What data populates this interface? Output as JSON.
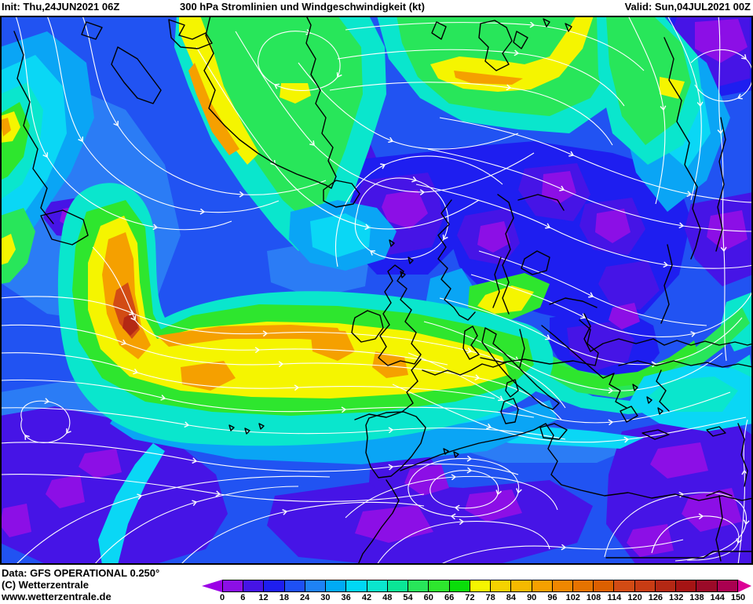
{
  "header": {
    "init_label": "Init: Thu,24JUN2021 06Z",
    "title": "300 hPa Stromlinien und Windgeschwindigkeit (kt)",
    "valid_label": "Valid: Sun,04JUL2021 00Z"
  },
  "footer": {
    "data_source": "Data: GFS OPERATIONAL 0.250°",
    "copyright": "(C) Wetterzentrale",
    "website": "www.wetterzentrale.de"
  },
  "colorbar": {
    "unit": "kt",
    "tick_labels": [
      "0",
      "6",
      "12",
      "18",
      "24",
      "30",
      "36",
      "42",
      "48",
      "54",
      "60",
      "66",
      "72",
      "78",
      "84",
      "90",
      "96",
      "102",
      "108",
      "114",
      "120",
      "126",
      "132",
      "138",
      "144",
      "150"
    ],
    "segment_colors": [
      "#8c0fe6",
      "#4614e6",
      "#1e1ef0",
      "#1e50f5",
      "#1e82f5",
      "#00aaf5",
      "#00d7f5",
      "#0ae6cd",
      "#0ae696",
      "#28e65a",
      "#2ee62e",
      "#0add0a",
      "#f5f500",
      "#f5d200",
      "#f5b900",
      "#f5a000",
      "#f08700",
      "#e67300",
      "#dc5f00",
      "#d24b14",
      "#c83c14",
      "#b42814",
      "#a51414",
      "#9b0a28",
      "#aa0050"
    ],
    "left_arrow_color": "#9b00e6",
    "right_arrow_color": "#dc0096"
  },
  "map": {
    "streamline_color": "#ffffff",
    "coastline_color": "#000000",
    "border_color": "#000000",
    "base_fill_color": "#2153f2"
  }
}
